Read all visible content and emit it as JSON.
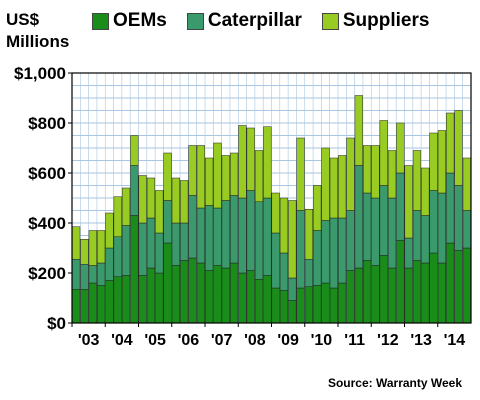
{
  "colors": {
    "oems": "#1a8c1a",
    "caterpillar": "#3a9a6c",
    "suppliers": "#99cc22",
    "grid": "#a8c6df",
    "outline": "#202020"
  },
  "chart_data": {
    "type": "bar",
    "stacked": true,
    "ylabel_lines": [
      "US$",
      "Millions"
    ],
    "source": "Source: Warranty Week",
    "ylim": [
      0,
      1000
    ],
    "yticks": [
      0,
      200,
      400,
      600,
      800,
      1000
    ],
    "ytick_labels": [
      "$0",
      "$200",
      "$400",
      "$600",
      "$800",
      "$1,000"
    ],
    "xtick_labels": [
      "'03",
      "'04",
      "'05",
      "'06",
      "'07",
      "'08",
      "'09",
      "'10",
      "'11",
      "'12",
      "'13",
      "'14"
    ],
    "grid": true,
    "legend_position": "top",
    "bar_count": 48,
    "series": [
      {
        "name": "OEMs",
        "values": [
          135,
          135,
          160,
          150,
          170,
          185,
          190,
          430,
          190,
          220,
          200,
          320,
          230,
          250,
          260,
          240,
          210,
          230,
          220,
          240,
          200,
          210,
          175,
          190,
          140,
          130,
          90,
          140,
          145,
          150,
          160,
          140,
          160,
          210,
          220,
          250,
          230,
          270,
          220,
          330,
          220,
          250,
          240,
          280,
          240,
          320,
          290,
          300
        ]
      },
      {
        "name": "Caterpillar",
        "values": [
          120,
          100,
          70,
          90,
          130,
          160,
          200,
          200,
          210,
          200,
          160,
          170,
          170,
          150,
          250,
          220,
          260,
          230,
          270,
          270,
          300,
          320,
          310,
          310,
          220,
          150,
          90,
          310,
          110,
          220,
          250,
          280,
          260,
          240,
          410,
          270,
          270,
          280,
          280,
          270,
          120,
          200,
          190,
          250,
          280,
          280,
          260,
          150
        ]
      },
      {
        "name": "Suppliers",
        "values": [
          130,
          100,
          140,
          130,
          140,
          160,
          150,
          120,
          190,
          160,
          170,
          190,
          180,
          170,
          200,
          250,
          190,
          260,
          180,
          170,
          290,
          250,
          205,
          285,
          160,
          220,
          310,
          290,
          200,
          180,
          290,
          240,
          250,
          290,
          280,
          190,
          210,
          260,
          190,
          200,
          290,
          240,
          190,
          230,
          250,
          240,
          300,
          210
        ]
      }
    ]
  }
}
